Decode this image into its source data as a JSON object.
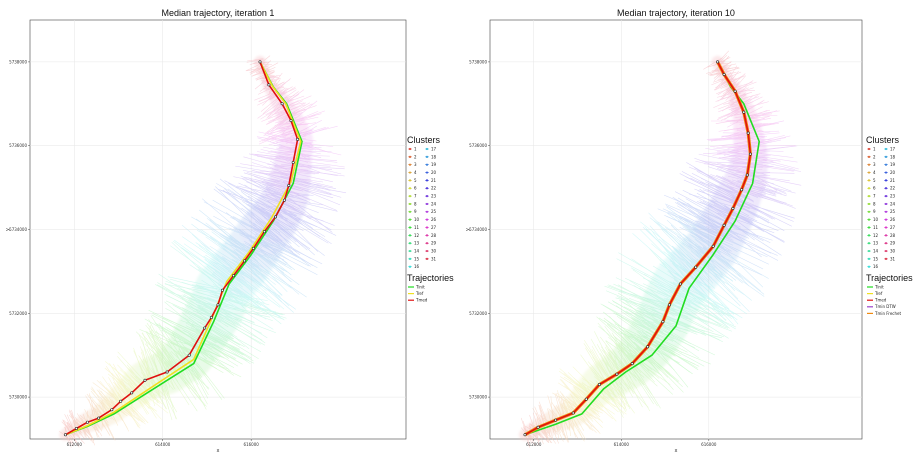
{
  "chart_data": [
    {
      "type": "line",
      "title": "Median trajectory, iteration 1",
      "xlabel": "x",
      "ylabel": "y",
      "xlim": [
        611000,
        619500
      ],
      "ylim": [
        5729000,
        5739000
      ],
      "x_ticks": [
        612000,
        614000,
        616000
      ],
      "x_tick_labels": [
        "612000",
        "614000",
        "616000"
      ],
      "y_ticks": [
        5730000,
        5732000,
        5734000,
        5736000,
        5738000
      ],
      "y_tick_labels": [
        "5730000",
        "5732000",
        "5734000",
        "5736000",
        "5738000"
      ],
      "grid": true,
      "legend_position": "right",
      "clusters": {
        "title": "Clusters",
        "labels": [
          "1",
          "2",
          "3",
          "4",
          "5",
          "6",
          "7",
          "8",
          "9",
          "10",
          "11",
          "12",
          "13",
          "14",
          "15",
          "16",
          "17",
          "18",
          "19",
          "20",
          "21",
          "22",
          "23",
          "24",
          "25",
          "26",
          "27",
          "28",
          "29",
          "30",
          "31"
        ]
      },
      "trajectories_legend": {
        "title": "Trajectories",
        "items": [
          {
            "name": "Tinit",
            "color": "#22dd22"
          },
          {
            "name": "Tref",
            "color": "#f0e020"
          },
          {
            "name": "Tmed",
            "color": "#e01010"
          }
        ]
      },
      "series": [
        {
          "name": "Tinit",
          "color": "#22dd22",
          "points": [
            [
              611800,
              5729100
            ],
            [
              612300,
              5729300
            ],
            [
              612900,
              5729600
            ],
            [
              613500,
              5730000
            ],
            [
              614100,
              5730400
            ],
            [
              614700,
              5730800
            ],
            [
              615150,
              5731800
            ],
            [
              615500,
              5732700
            ],
            [
              616000,
              5733400
            ],
            [
              616500,
              5734200
            ],
            [
              616950,
              5735100
            ],
            [
              617150,
              5736100
            ],
            [
              616800,
              5737000
            ],
            [
              616500,
              5737400
            ],
            [
              616200,
              5738000
            ]
          ]
        },
        {
          "name": "Tref",
          "color": "#f0e020",
          "points": [
            [
              611800,
              5729100
            ],
            [
              612300,
              5729320
            ],
            [
              612900,
              5729640
            ],
            [
              613500,
              5730060
            ],
            [
              614100,
              5730480
            ],
            [
              614700,
              5730900
            ],
            [
              615100,
              5731850
            ],
            [
              615450,
              5732760
            ],
            [
              615950,
              5733460
            ],
            [
              616450,
              5734260
            ],
            [
              616900,
              5735140
            ],
            [
              617120,
              5736100
            ],
            [
              616780,
              5737000
            ],
            [
              616480,
              5737420
            ],
            [
              616200,
              5738000
            ]
          ]
        },
        {
          "name": "Tmed",
          "color": "#e01010",
          "markers": true,
          "points": [
            [
              611800,
              5729100
            ],
            [
              612050,
              5729250
            ],
            [
              612300,
              5729400
            ],
            [
              612550,
              5729500
            ],
            [
              612850,
              5729700
            ],
            [
              613050,
              5729900
            ],
            [
              613300,
              5730100
            ],
            [
              613600,
              5730400
            ],
            [
              614100,
              5730600
            ],
            [
              614600,
              5731000
            ],
            [
              614950,
              5731650
            ],
            [
              615100,
              5731900
            ],
            [
              615250,
              5732200
            ],
            [
              615350,
              5732550
            ],
            [
              615600,
              5732900
            ],
            [
              615850,
              5733250
            ],
            [
              616050,
              5733550
            ],
            [
              616300,
              5733950
            ],
            [
              616550,
              5734300
            ],
            [
              616750,
              5734700
            ],
            [
              616850,
              5735050
            ],
            [
              616950,
              5735600
            ],
            [
              617050,
              5736150
            ],
            [
              616900,
              5736600
            ],
            [
              616700,
              5737000
            ],
            [
              616400,
              5737450
            ],
            [
              616200,
              5738000
            ]
          ]
        }
      ]
    },
    {
      "type": "line",
      "title": "Median trajectory, iteration 10",
      "xlabel": "x",
      "ylabel": "y",
      "xlim": [
        611000,
        619500
      ],
      "ylim": [
        5729000,
        5739000
      ],
      "x_ticks": [
        612000,
        614000,
        616000
      ],
      "x_tick_labels": [
        "612000",
        "614000",
        "616000"
      ],
      "y_ticks": [
        5730000,
        5732000,
        5734000,
        5736000,
        5738000
      ],
      "y_tick_labels": [
        "5730000",
        "5732000",
        "5734000",
        "5736000",
        "5738000"
      ],
      "grid": true,
      "legend_position": "right",
      "clusters": {
        "title": "Clusters",
        "labels": [
          "1",
          "2",
          "3",
          "4",
          "5",
          "6",
          "7",
          "8",
          "9",
          "10",
          "11",
          "12",
          "13",
          "14",
          "15",
          "16",
          "17",
          "18",
          "19",
          "20",
          "21",
          "22",
          "23",
          "24",
          "25",
          "26",
          "27",
          "28",
          "29",
          "30",
          "31"
        ]
      },
      "trajectories_legend": {
        "title": "Trajectories",
        "items": [
          {
            "name": "Tinit",
            "color": "#22dd22"
          },
          {
            "name": "Tref",
            "color": "#f0e020"
          },
          {
            "name": "Tmed",
            "color": "#e01010"
          },
          {
            "name": "Tmin DTW",
            "color": "#9944cc"
          },
          {
            "name": "Tmin Frechet",
            "color": "#f08a10"
          }
        ]
      },
      "series": [
        {
          "name": "Tinit",
          "color": "#22dd22",
          "points": [
            [
              611800,
              5729100
            ],
            [
              612500,
              5729350
            ],
            [
              613100,
              5729600
            ],
            [
              613600,
              5730200
            ],
            [
              614100,
              5730600
            ],
            [
              614700,
              5731000
            ],
            [
              615250,
              5731700
            ],
            [
              615550,
              5732600
            ],
            [
              616100,
              5733400
            ],
            [
              616600,
              5734200
            ],
            [
              617000,
              5735100
            ],
            [
              617150,
              5736100
            ],
            [
              616800,
              5737000
            ],
            [
              616500,
              5737400
            ],
            [
              616200,
              5738000
            ]
          ]
        },
        {
          "name": "Tmin Frechet",
          "color": "#f08a10",
          "points": [
            [
              611800,
              5729100
            ],
            [
              612100,
              5729280
            ],
            [
              612500,
              5729450
            ],
            [
              612900,
              5729620
            ],
            [
              613200,
              5729950
            ],
            [
              613500,
              5730300
            ],
            [
              613900,
              5730550
            ],
            [
              614250,
              5730800
            ],
            [
              614600,
              5731200
            ],
            [
              614950,
              5731800
            ],
            [
              615100,
              5732200
            ],
            [
              615350,
              5732700
            ],
            [
              615700,
              5733100
            ],
            [
              616100,
              5733600
            ],
            [
              616350,
              5734100
            ],
            [
              616550,
              5734500
            ],
            [
              616750,
              5734950
            ],
            [
              616880,
              5735300
            ],
            [
              616950,
              5735800
            ],
            [
              616900,
              5736300
            ],
            [
              616800,
              5736800
            ],
            [
              616600,
              5737300
            ],
            [
              616350,
              5737700
            ],
            [
              616200,
              5738000
            ]
          ]
        },
        {
          "name": "Tmed",
          "color": "#e01010",
          "markers": true,
          "points": [
            [
              611800,
              5729100
            ],
            [
              612100,
              5729280
            ],
            [
              612500,
              5729450
            ],
            [
              612900,
              5729620
            ],
            [
              613200,
              5729950
            ],
            [
              613500,
              5730300
            ],
            [
              613900,
              5730550
            ],
            [
              614250,
              5730800
            ],
            [
              614600,
              5731200
            ],
            [
              614950,
              5731800
            ],
            [
              615100,
              5732200
            ],
            [
              615350,
              5732700
            ],
            [
              615700,
              5733100
            ],
            [
              616100,
              5733600
            ],
            [
              616350,
              5734100
            ],
            [
              616550,
              5734500
            ],
            [
              616750,
              5734950
            ],
            [
              616880,
              5735300
            ],
            [
              616950,
              5735800
            ],
            [
              616900,
              5736300
            ],
            [
              616800,
              5736800
            ],
            [
              616600,
              5737300
            ],
            [
              616350,
              5737700
            ],
            [
              616200,
              5738000
            ]
          ]
        }
      ]
    }
  ]
}
